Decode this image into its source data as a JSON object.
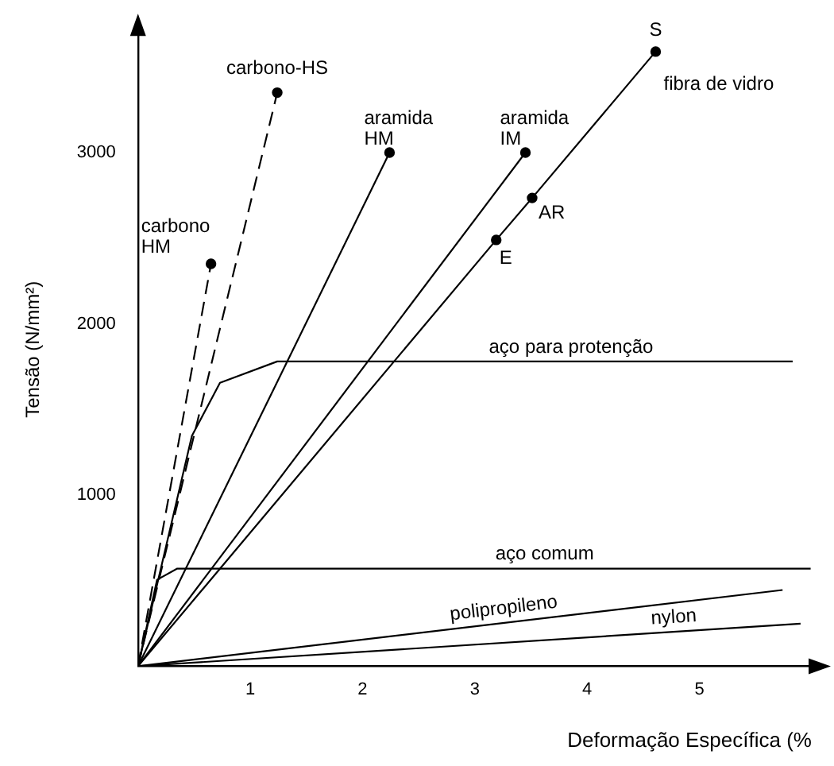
{
  "chart_data": {
    "type": "line",
    "xlabel": "Deformação Específica (%",
    "ylabel": "Tensão (N/mm²)",
    "xlim": [
      0,
      6.0
    ],
    "ylim": [
      0,
      3700
    ],
    "xticks": [
      1,
      2,
      3,
      4,
      5
    ],
    "yticks": [
      1000,
      2000,
      3000
    ],
    "grid": false,
    "legend": false,
    "series": [
      {
        "name": "carbono HM",
        "color": "#000000",
        "line_style": "dashed",
        "marker": "circle",
        "x": [
          0,
          0.65
        ],
        "values": [
          0,
          2350
        ]
      },
      {
        "name": "carbono-HS",
        "color": "#000000",
        "line_style": "dashed",
        "marker": "circle",
        "x": [
          0,
          1.24
        ],
        "values": [
          0,
          3350
        ]
      },
      {
        "name": "aramida HM",
        "color": "#000000",
        "line_style": "solid",
        "marker": "circle",
        "x": [
          0,
          2.24
        ],
        "values": [
          0,
          3000
        ]
      },
      {
        "name": "aramida IM",
        "color": "#000000",
        "line_style": "solid",
        "marker": "circle",
        "x": [
          0,
          3.45
        ],
        "values": [
          0,
          3000
        ]
      },
      {
        "name": "fibra de vidro",
        "color": "#000000",
        "line_style": "solid",
        "marker": "circle",
        "x": [
          0,
          3.19,
          3.51,
          4.61
        ],
        "values": [
          0,
          2490,
          2735,
          3590
        ]
      },
      {
        "name": "aço para protenção",
        "color": "#000000",
        "line_style": "solid",
        "marker": "none",
        "x": [
          0,
          0.48,
          0.73,
          1.24,
          5.83
        ],
        "values": [
          0,
          1345,
          1655,
          1780,
          1780
        ]
      },
      {
        "name": "aço comum",
        "color": "#000000",
        "line_style": "solid",
        "marker": "none",
        "x": [
          0,
          0.17,
          0.35,
          5.99
        ],
        "values": [
          0,
          505,
          570,
          570
        ]
      },
      {
        "name": "polipropileno",
        "color": "#000000",
        "line_style": "solid",
        "marker": "none",
        "x": [
          0,
          5.74
        ],
        "values": [
          0,
          445
        ]
      },
      {
        "name": "nylon",
        "color": "#000000",
        "line_style": "solid",
        "marker": "none",
        "x": [
          0,
          5.9
        ],
        "values": [
          0,
          248
        ]
      }
    ],
    "annotations": [
      {
        "text": "S",
        "x": 4.61,
        "y": 3590
      },
      {
        "text": "AR",
        "x": 3.51,
        "y": 2735
      },
      {
        "text": "E",
        "x": 3.19,
        "y": 2490
      }
    ]
  }
}
